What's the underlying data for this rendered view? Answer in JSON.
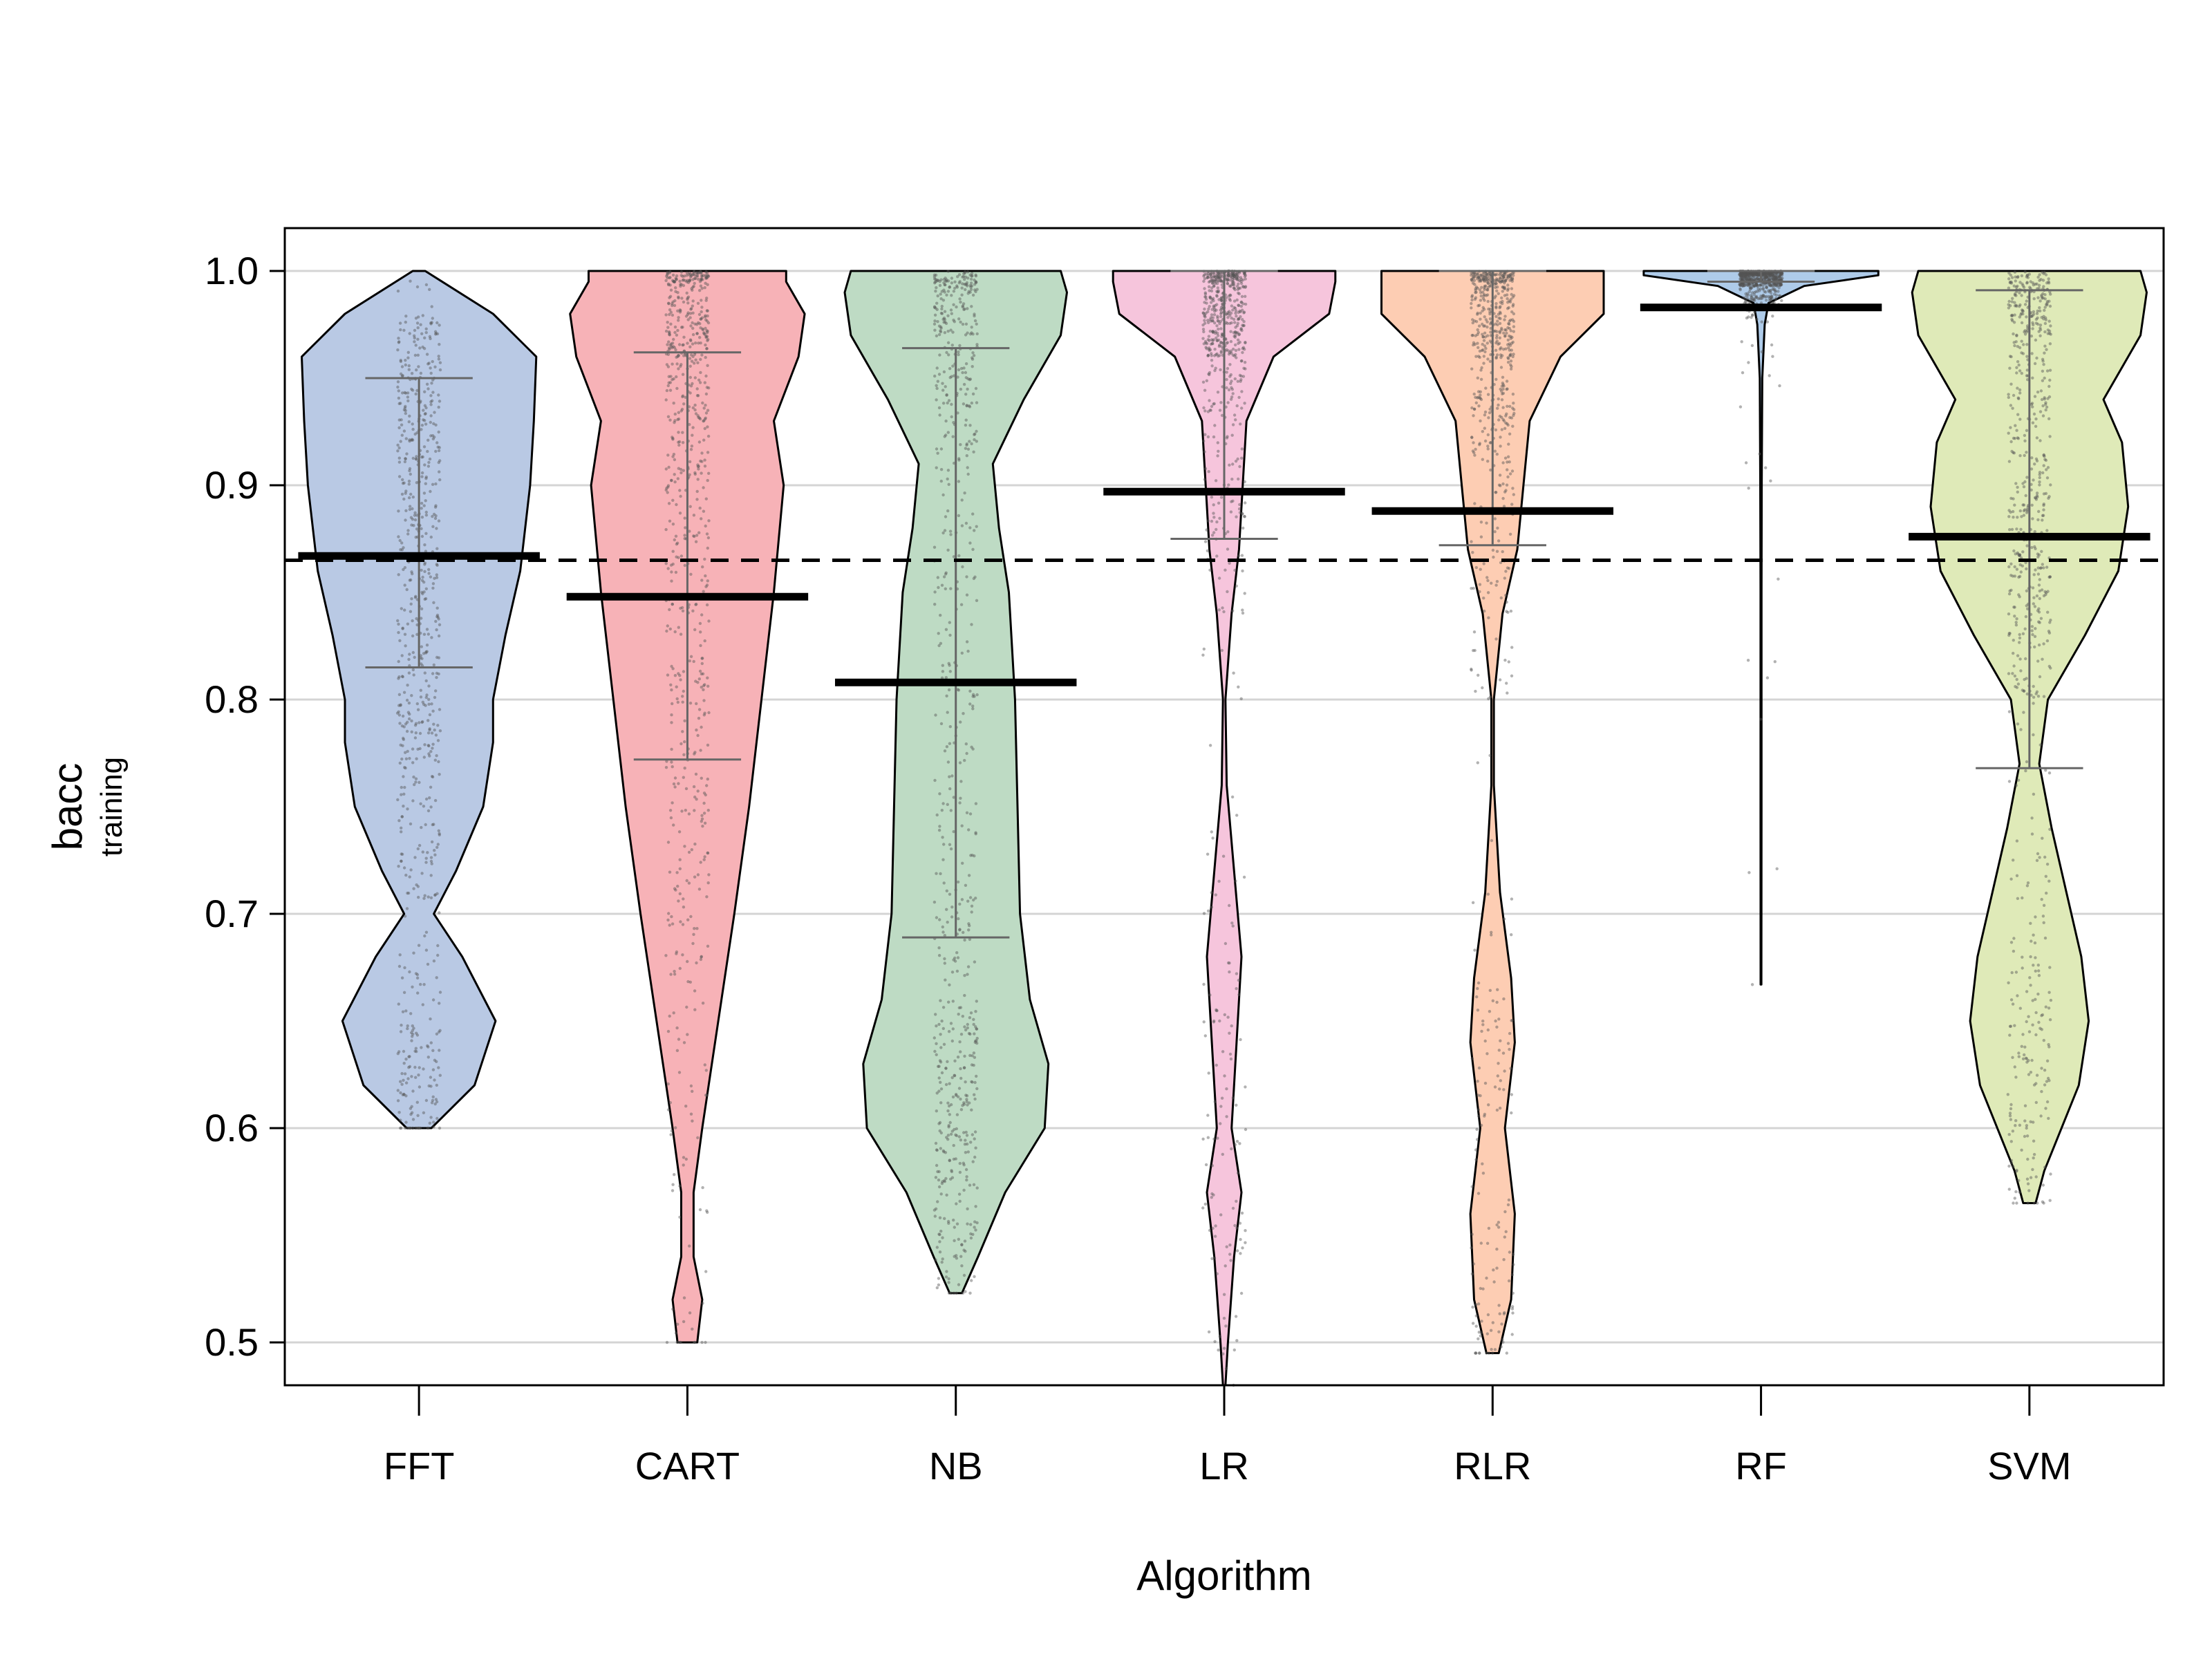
{
  "chart_data": {
    "type": "violin",
    "xlabel": "Algorithm",
    "ylabel": "bacc",
    "ylabel_sub": "training",
    "ylim": [
      0.48,
      1.02
    ],
    "yticks": [
      0.5,
      0.6,
      0.7,
      0.8,
      0.9,
      1.0
    ],
    "ytick_labels": [
      "0.5",
      "0.6",
      "0.7",
      "0.8",
      "0.9",
      "1.0"
    ],
    "grid": "horizontal",
    "reference_line": {
      "value": 0.865,
      "style": "dashed"
    },
    "categories": [
      "FFT",
      "CART",
      "NB",
      "LR",
      "RLR",
      "RF",
      "SVM"
    ],
    "series": [
      {
        "name": "FFT",
        "color": "#b9c9e4",
        "mean": 0.867,
        "band_low": 0.815,
        "band_high": 0.95,
        "min": 0.6,
        "max": 1.0,
        "density": [
          [
            0.6,
            0.1
          ],
          [
            0.62,
            0.45
          ],
          [
            0.65,
            0.62
          ],
          [
            0.68,
            0.35
          ],
          [
            0.7,
            0.12
          ],
          [
            0.72,
            0.3
          ],
          [
            0.75,
            0.52
          ],
          [
            0.78,
            0.6
          ],
          [
            0.8,
            0.6
          ],
          [
            0.83,
            0.7
          ],
          [
            0.86,
            0.82
          ],
          [
            0.9,
            0.9
          ],
          [
            0.93,
            0.93
          ],
          [
            0.96,
            0.95
          ],
          [
            0.98,
            0.6
          ],
          [
            1.0,
            0.05
          ]
        ]
      },
      {
        "name": "CART",
        "color": "#f7b2b7",
        "mean": 0.848,
        "band_low": 0.772,
        "band_high": 0.962,
        "min": 0.5,
        "max": 1.0,
        "density": [
          [
            0.5,
            0.08
          ],
          [
            0.52,
            0.12
          ],
          [
            0.54,
            0.05
          ],
          [
            0.57,
            0.05
          ],
          [
            0.6,
            0.12
          ],
          [
            0.65,
            0.25
          ],
          [
            0.7,
            0.38
          ],
          [
            0.75,
            0.5
          ],
          [
            0.8,
            0.6
          ],
          [
            0.85,
            0.7
          ],
          [
            0.9,
            0.78
          ],
          [
            0.93,
            0.7
          ],
          [
            0.96,
            0.9
          ],
          [
            0.98,
            0.95
          ],
          [
            0.995,
            0.8
          ],
          [
            1.0,
            0.8
          ]
        ]
      },
      {
        "name": "NB",
        "color": "#bedbc4",
        "mean": 0.808,
        "band_low": 0.689,
        "band_high": 0.964,
        "min": 0.523,
        "max": 1.0,
        "density": [
          [
            0.523,
            0.05
          ],
          [
            0.54,
            0.18
          ],
          [
            0.57,
            0.4
          ],
          [
            0.6,
            0.72
          ],
          [
            0.63,
            0.75
          ],
          [
            0.66,
            0.6
          ],
          [
            0.7,
            0.52
          ],
          [
            0.75,
            0.5
          ],
          [
            0.8,
            0.48
          ],
          [
            0.85,
            0.43
          ],
          [
            0.88,
            0.35
          ],
          [
            0.91,
            0.3
          ],
          [
            0.94,
            0.55
          ],
          [
            0.97,
            0.85
          ],
          [
            0.99,
            0.9
          ],
          [
            1.0,
            0.85
          ]
        ]
      },
      {
        "name": "LR",
        "color": "#f6c5dc",
        "mean": 0.897,
        "band_low": 0.875,
        "band_high": 1.0,
        "min": 0.48,
        "max": 1.0,
        "density": [
          [
            0.48,
            0.01
          ],
          [
            0.5,
            0.03
          ],
          [
            0.54,
            0.08
          ],
          [
            0.57,
            0.14
          ],
          [
            0.6,
            0.06
          ],
          [
            0.64,
            0.1
          ],
          [
            0.68,
            0.14
          ],
          [
            0.72,
            0.08
          ],
          [
            0.76,
            0.02
          ],
          [
            0.8,
            0.01
          ],
          [
            0.84,
            0.06
          ],
          [
            0.87,
            0.12
          ],
          [
            0.9,
            0.15
          ],
          [
            0.93,
            0.18
          ],
          [
            0.96,
            0.4
          ],
          [
            0.98,
            0.85
          ],
          [
            0.995,
            0.9
          ],
          [
            1.0,
            0.9
          ]
        ]
      },
      {
        "name": "RLR",
        "color": "#fdcdb3",
        "mean": 0.888,
        "band_low": 0.872,
        "band_high": 1.0,
        "min": 0.495,
        "max": 1.0,
        "density": [
          [
            0.495,
            0.05
          ],
          [
            0.52,
            0.15
          ],
          [
            0.56,
            0.18
          ],
          [
            0.6,
            0.1
          ],
          [
            0.64,
            0.18
          ],
          [
            0.67,
            0.15
          ],
          [
            0.71,
            0.06
          ],
          [
            0.76,
            0.01
          ],
          [
            0.8,
            0.01
          ],
          [
            0.84,
            0.08
          ],
          [
            0.87,
            0.2
          ],
          [
            0.9,
            0.25
          ],
          [
            0.93,
            0.3
          ],
          [
            0.96,
            0.55
          ],
          [
            0.98,
            0.9
          ],
          [
            0.995,
            0.9
          ],
          [
            1.0,
            0.9
          ]
        ]
      },
      {
        "name": "RF",
        "color": "#aecbe9",
        "mean": 0.983,
        "band_low": 0.995,
        "band_high": 1.0,
        "min": 0.667,
        "max": 1.0,
        "density": [
          [
            0.667,
            0.003
          ],
          [
            0.75,
            0.004
          ],
          [
            0.85,
            0.004
          ],
          [
            0.9,
            0.006
          ],
          [
            0.95,
            0.01
          ],
          [
            0.975,
            0.03
          ],
          [
            0.985,
            0.06
          ],
          [
            0.993,
            0.35
          ],
          [
            0.998,
            0.95
          ],
          [
            1.0,
            0.95
          ]
        ]
      },
      {
        "name": "SVM",
        "color": "#dfeab8",
        "mean": 0.876,
        "band_low": 0.768,
        "band_high": 0.991,
        "min": 0.565,
        "max": 1.0,
        "density": [
          [
            0.565,
            0.05
          ],
          [
            0.58,
            0.12
          ],
          [
            0.62,
            0.4
          ],
          [
            0.65,
            0.48
          ],
          [
            0.68,
            0.42
          ],
          [
            0.71,
            0.3
          ],
          [
            0.74,
            0.18
          ],
          [
            0.77,
            0.08
          ],
          [
            0.8,
            0.15
          ],
          [
            0.83,
            0.45
          ],
          [
            0.86,
            0.72
          ],
          [
            0.89,
            0.8
          ],
          [
            0.92,
            0.75
          ],
          [
            0.94,
            0.6
          ],
          [
            0.97,
            0.9
          ],
          [
            0.99,
            0.95
          ],
          [
            1.0,
            0.9
          ]
        ]
      }
    ]
  }
}
